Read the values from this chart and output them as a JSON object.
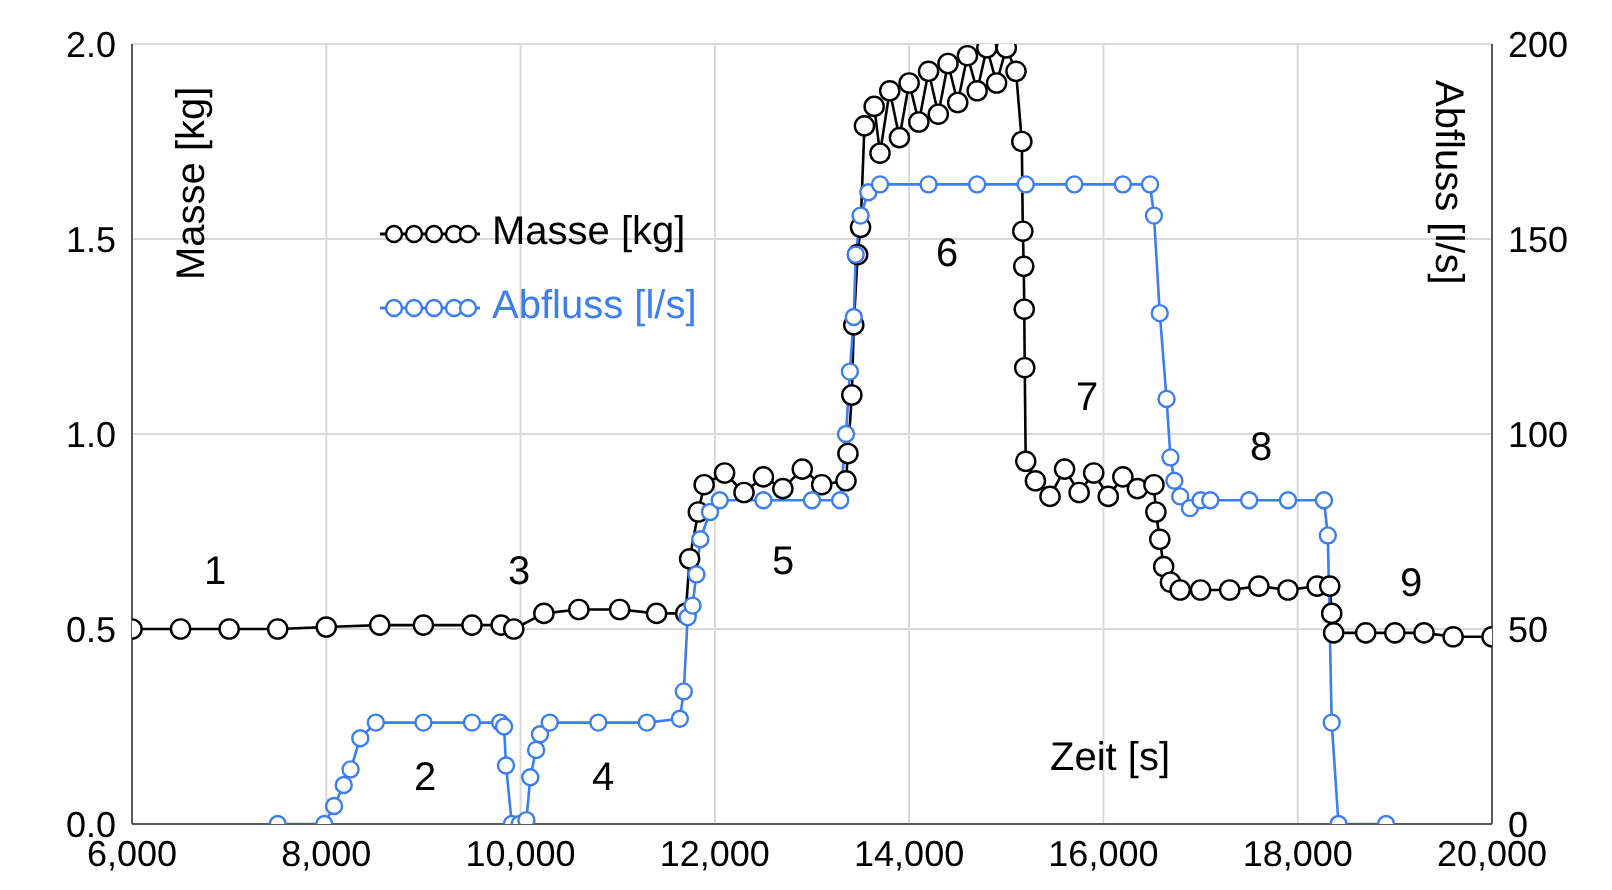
{
  "chart_data": {
    "type": "line",
    "xlabel": "Zeit [s]",
    "ylabel": "Masse [kg]",
    "y2label": "Abfluss [l/s]",
    "xlim": [
      6000,
      20000
    ],
    "xticks": [
      {
        "value": 6000,
        "label": "6,000"
      },
      {
        "value": 8000,
        "label": "8,000"
      },
      {
        "value": 10000,
        "label": "10,000"
      },
      {
        "value": 12000,
        "label": "12,000"
      },
      {
        "value": 14000,
        "label": "14,000"
      },
      {
        "value": 16000,
        "label": "16,000"
      },
      {
        "value": 18000,
        "label": "18,000"
      },
      {
        "value": 20000,
        "label": "20,000"
      }
    ],
    "ylim": [
      0,
      2
    ],
    "yticks": [
      {
        "value": 0,
        "label": "0.0"
      },
      {
        "value": 0.5,
        "label": "0.5"
      },
      {
        "value": 1,
        "label": "1.0"
      },
      {
        "value": 1.5,
        "label": "1.5"
      },
      {
        "value": 2,
        "label": "2.0"
      }
    ],
    "y2lim": [
      0,
      200
    ],
    "y2ticks": [
      0,
      50,
      100,
      150,
      200
    ],
    "grid": true,
    "legend": "top left",
    "marker": "circle",
    "line_style": "solid",
    "series": [
      {
        "name": "Masse [kg]",
        "color": "#000000",
        "x": [
          6000,
          6500,
          7000,
          7500,
          8000,
          8550,
          9000,
          9500,
          9800,
          9930,
          10240,
          10600,
          11020,
          11400,
          11700,
          11740,
          11830,
          11890,
          12100,
          12300,
          12500,
          12700,
          12900,
          13100,
          13350,
          13370,
          13410,
          13430,
          13470,
          13500,
          13540,
          13640,
          13700,
          13800,
          13900,
          14000,
          14100,
          14200,
          14300,
          14400,
          14500,
          14600,
          14700,
          14800,
          14900,
          15000,
          15100,
          15160,
          15170,
          15180,
          15185,
          15190,
          15200,
          15300,
          15450,
          15600,
          15750,
          15900,
          16050,
          16200,
          16350,
          16520,
          16540,
          16580,
          16620,
          16690,
          16790,
          17000,
          17300,
          17600,
          17900,
          18200,
          18330,
          18350,
          18370,
          18700,
          19000,
          19300,
          19600,
          20000
        ],
        "values": [
          0.5,
          0.5,
          0.5,
          0.5,
          0.505,
          0.51,
          0.51,
          0.51,
          0.51,
          0.5,
          0.54,
          0.55,
          0.55,
          0.54,
          0.54,
          0.68,
          0.8,
          0.87,
          0.9,
          0.85,
          0.89,
          0.86,
          0.91,
          0.87,
          0.88,
          0.95,
          1.1,
          1.28,
          1.46,
          1.53,
          1.79,
          1.84,
          1.72,
          1.88,
          1.76,
          1.9,
          1.8,
          1.93,
          1.82,
          1.95,
          1.85,
          1.97,
          1.88,
          1.99,
          1.9,
          1.99,
          1.93,
          1.75,
          1.52,
          1.43,
          1.32,
          1.17,
          0.93,
          0.88,
          0.84,
          0.91,
          0.85,
          0.9,
          0.84,
          0.89,
          0.86,
          0.87,
          0.8,
          0.73,
          0.66,
          0.62,
          0.6,
          0.6,
          0.6,
          0.61,
          0.6,
          0.61,
          0.61,
          0.54,
          0.49,
          0.49,
          0.49,
          0.49,
          0.48,
          0.48
        ]
      },
      {
        "name": "Abfluss [l/s]",
        "color": "#3c7df0",
        "axis": "y2",
        "x": [
          7500,
          7980,
          8080,
          8180,
          8250,
          8350,
          8510,
          9000,
          9500,
          9790,
          9830,
          9850,
          9910,
          9990,
          10060,
          10100,
          10160,
          10200,
          10300,
          10800,
          11300,
          11640,
          11680,
          11720,
          11770,
          11810,
          11850,
          11950,
          12050,
          12500,
          13000,
          13290,
          13350,
          13390,
          13430,
          13450,
          13500,
          13580,
          13700,
          14200,
          14700,
          15200,
          15700,
          16200,
          16480,
          16520,
          16580,
          16650,
          16690,
          16730,
          16790,
          16890,
          17000,
          17100,
          17500,
          17900,
          18270,
          18310,
          18350,
          18420,
          18910
        ],
        "values": [
          0,
          0,
          4.6,
          10,
          14,
          22,
          26,
          26,
          26,
          26,
          25,
          15,
          0,
          0,
          1,
          12,
          19,
          23,
          26,
          26,
          26,
          27,
          34,
          53,
          56,
          64,
          73,
          80,
          83,
          83,
          83,
          83,
          100,
          116,
          130,
          146,
          156,
          162,
          164,
          164,
          164,
          164,
          164,
          164,
          164,
          156,
          131,
          109,
          94,
          88,
          84,
          81,
          83,
          83,
          83,
          83,
          83,
          74,
          26,
          0,
          0
        ]
      }
    ],
    "annotations": [
      "1",
      "2",
      "3",
      "4",
      "5",
      "6",
      "7",
      "8",
      "9"
    ]
  }
}
